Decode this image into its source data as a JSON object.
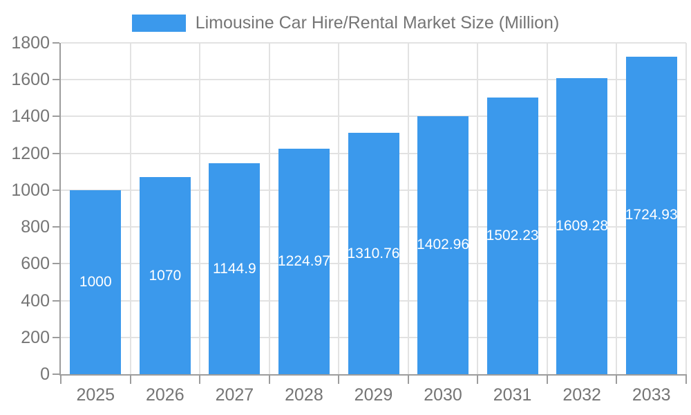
{
  "legend": {
    "label": "Limousine Car Hire/Rental Market Size (Million)"
  },
  "colors": {
    "bar": "#3B99EC",
    "axis": "#9C9C9C",
    "grid": "#E2E2E2",
    "text": "#757575",
    "value_label": "#FFFFFF",
    "background": "#FFFFFF"
  },
  "chart_data": {
    "type": "bar",
    "title": "Limousine Car Hire/Rental Market Size (Million)",
    "xlabel": "",
    "ylabel": "",
    "categories": [
      "2025",
      "2026",
      "2027",
      "2028",
      "2029",
      "2030",
      "2031",
      "2032",
      "2033"
    ],
    "values": [
      1000,
      1070,
      1144.9,
      1224.97,
      1310.76,
      1402.96,
      1502.23,
      1609.28,
      1724.93
    ],
    "value_labels": [
      "1000",
      "1070",
      "1144.9",
      "1224.97",
      "1310.76",
      "1402.96",
      "1502.23",
      "1609.28",
      "1724.93"
    ],
    "ylim": [
      0,
      1800
    ],
    "yticks": [
      0,
      200,
      400,
      600,
      800,
      1000,
      1200,
      1400,
      1600,
      1800
    ],
    "grid": true,
    "legend_position": "top-center",
    "value_labels_position": "inside-center",
    "bar_color": "#3B99EC"
  }
}
